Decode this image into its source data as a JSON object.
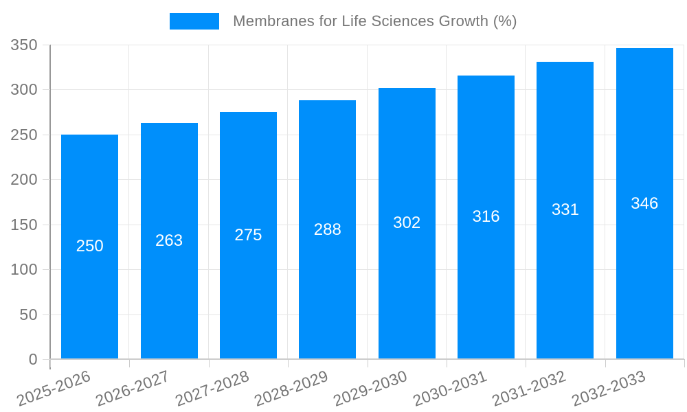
{
  "chart_data": {
    "type": "bar",
    "title": "Membranes for Life Sciences Growth (%)",
    "categories": [
      "2025-2026",
      "2026-2027",
      "2027-2028",
      "2028-2029",
      "2029-2030",
      "2030-2031",
      "2031-2032",
      "2032-2033"
    ],
    "values": [
      250,
      263,
      275,
      288,
      302,
      316,
      331,
      346
    ],
    "xlabel": "",
    "ylabel": "",
    "ylim": [
      0,
      350
    ],
    "yticks": [
      0,
      50,
      100,
      150,
      200,
      250,
      300,
      350
    ],
    "grid": true,
    "legend_position": "top",
    "bar_labels_shown": true
  },
  "colors": {
    "bar": "#008FFB",
    "bar_label_text": "#ffffff",
    "tick_text": "#757575",
    "legend_text": "#757575",
    "gridline": "#e6e6e6",
    "y_axis_line": "#979797",
    "x_axis_line": "#cccccc",
    "background": "#ffffff"
  }
}
